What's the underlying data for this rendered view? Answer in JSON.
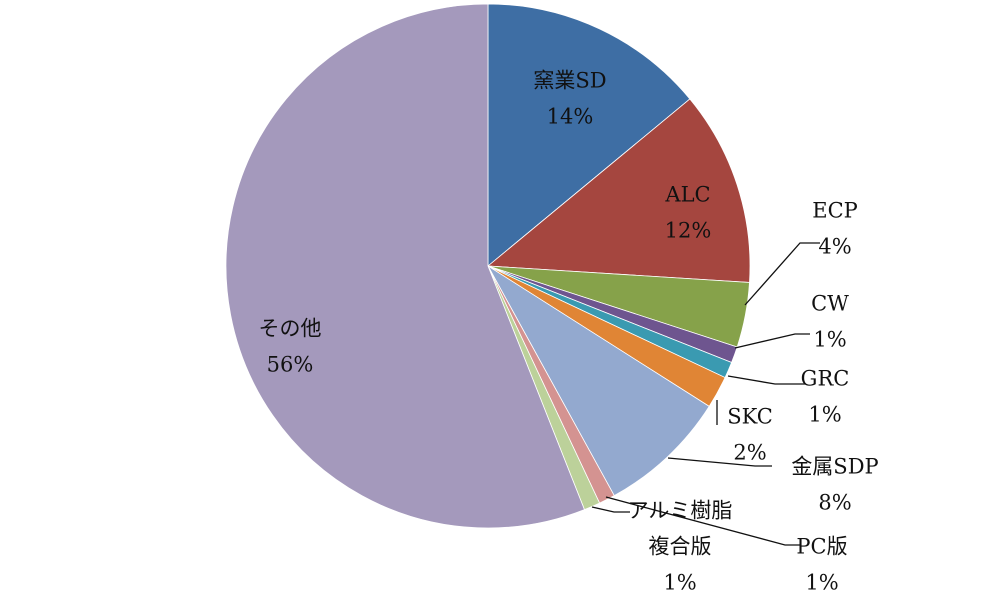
{
  "chart_data": {
    "type": "pie",
    "start": "top",
    "direction": "clockwise",
    "slices": [
      {
        "label": "窯業SD",
        "value": 14,
        "pct": "14%",
        "color": "#3E6EA4"
      },
      {
        "label": "ALC",
        "value": 12,
        "pct": "12%",
        "color": "#A5463F"
      },
      {
        "label": "ECP",
        "value": 4,
        "pct": "4%",
        "color": "#86A24A"
      },
      {
        "label": "CW",
        "value": 1,
        "pct": "1%",
        "color": "#6E558F"
      },
      {
        "label": "GRC",
        "value": 1,
        "pct": "1%",
        "color": "#3A9AB1"
      },
      {
        "label": "SKC",
        "value": 2,
        "pct": "2%",
        "color": "#E08535"
      },
      {
        "label": "金属SDP",
        "value": 8,
        "pct": "8%",
        "color": "#93A9CF"
      },
      {
        "label": "PC版",
        "value": 1,
        "pct": "1%",
        "color": "#D49391"
      },
      {
        "label": "アルミ樹脂\n複合版",
        "value": 1,
        "pct": "1%",
        "color": "#BCD19A"
      },
      {
        "label": "その他",
        "value": 56,
        "pct": "56%",
        "color": "#A499BC"
      }
    ]
  }
}
